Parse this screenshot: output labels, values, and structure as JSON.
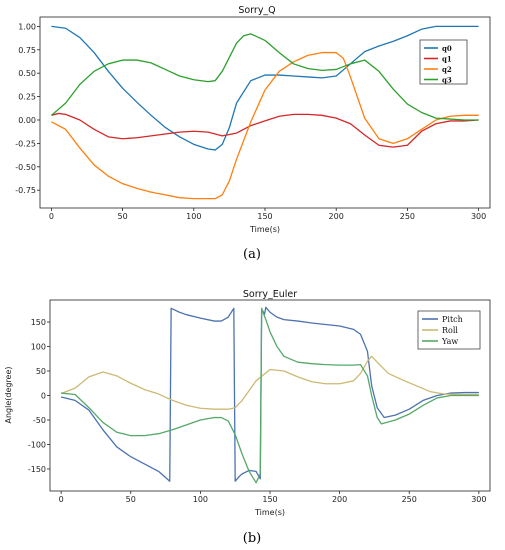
{
  "chart_data": [
    {
      "type": "line",
      "title": "Sorry_Q",
      "xlabel": "Time(s)",
      "ylabel": "",
      "xlim": [
        -8,
        308
      ],
      "ylim": [
        -0.94,
        1.1
      ],
      "xticks": [
        0,
        50,
        100,
        150,
        200,
        250,
        300
      ],
      "yticks": [
        -0.75,
        -0.5,
        -0.25,
        0.0,
        0.25,
        0.5,
        0.75,
        1.0
      ],
      "ytick_labels": [
        "-0.75",
        "-0.50",
        "-0.25",
        "0.00",
        "0.25",
        "0.50",
        "0.75",
        "1.00"
      ],
      "legend_position": "right",
      "grid": false,
      "series": [
        {
          "name": "q0",
          "color": "#1f77b4",
          "x": [
            0,
            10,
            20,
            30,
            40,
            50,
            60,
            70,
            80,
            90,
            100,
            110,
            115,
            120,
            125,
            130,
            140,
            150,
            160,
            170,
            180,
            190,
            200,
            210,
            220,
            230,
            240,
            250,
            260,
            270,
            280,
            290,
            300
          ],
          "y": [
            1.0,
            0.98,
            0.88,
            0.72,
            0.52,
            0.34,
            0.19,
            0.05,
            -0.08,
            -0.18,
            -0.26,
            -0.31,
            -0.32,
            -0.26,
            -0.08,
            0.18,
            0.42,
            0.48,
            0.48,
            0.47,
            0.46,
            0.45,
            0.47,
            0.6,
            0.73,
            0.79,
            0.84,
            0.9,
            0.97,
            1.0,
            1.0,
            1.0,
            1.0
          ]
        },
        {
          "name": "q1",
          "color": "#d62728",
          "x": [
            0,
            5,
            10,
            20,
            30,
            40,
            50,
            60,
            70,
            80,
            90,
            100,
            110,
            120,
            130,
            140,
            150,
            160,
            170,
            180,
            190,
            200,
            210,
            220,
            230,
            240,
            250,
            260,
            270,
            280,
            290,
            300
          ],
          "y": [
            0.05,
            0.07,
            0.06,
            0.0,
            -0.1,
            -0.18,
            -0.2,
            -0.19,
            -0.17,
            -0.15,
            -0.13,
            -0.12,
            -0.13,
            -0.17,
            -0.14,
            -0.06,
            -0.01,
            0.04,
            0.06,
            0.06,
            0.05,
            0.02,
            -0.04,
            -0.16,
            -0.27,
            -0.29,
            -0.27,
            -0.12,
            -0.04,
            -0.01,
            -0.01,
            0.0
          ]
        },
        {
          "name": "q2",
          "color": "#ff7f0e",
          "x": [
            0,
            10,
            20,
            30,
            40,
            50,
            60,
            70,
            80,
            90,
            100,
            110,
            115,
            120,
            125,
            130,
            140,
            150,
            160,
            170,
            180,
            190,
            200,
            205,
            210,
            220,
            230,
            240,
            250,
            260,
            270,
            280,
            290,
            300
          ],
          "y": [
            -0.02,
            -0.1,
            -0.3,
            -0.48,
            -0.6,
            -0.68,
            -0.73,
            -0.77,
            -0.8,
            -0.83,
            -0.84,
            -0.84,
            -0.84,
            -0.8,
            -0.65,
            -0.42,
            -0.02,
            0.32,
            0.52,
            0.62,
            0.69,
            0.72,
            0.72,
            0.66,
            0.46,
            0.02,
            -0.2,
            -0.25,
            -0.2,
            -0.1,
            0.0,
            0.04,
            0.05,
            0.05
          ]
        },
        {
          "name": "q3",
          "color": "#2ca02c",
          "x": [
            0,
            10,
            20,
            30,
            40,
            50,
            60,
            70,
            80,
            90,
            100,
            110,
            115,
            120,
            130,
            135,
            140,
            150,
            160,
            170,
            180,
            190,
            200,
            210,
            220,
            230,
            240,
            250,
            260,
            270,
            280,
            290,
            300
          ],
          "y": [
            0.05,
            0.18,
            0.38,
            0.52,
            0.6,
            0.64,
            0.64,
            0.61,
            0.54,
            0.47,
            0.43,
            0.41,
            0.42,
            0.52,
            0.82,
            0.9,
            0.92,
            0.85,
            0.72,
            0.6,
            0.55,
            0.53,
            0.54,
            0.6,
            0.64,
            0.52,
            0.33,
            0.17,
            0.08,
            0.02,
            0.01,
            0.0,
            0.0
          ]
        }
      ]
    },
    {
      "type": "line",
      "title": "Sorry_Euler",
      "xlabel": "Time(s)",
      "ylabel": "Angle(degree)",
      "xlim": [
        -8,
        308
      ],
      "ylim": [
        -195,
        195
      ],
      "xticks": [
        0,
        50,
        100,
        150,
        200,
        250,
        300
      ],
      "yticks": [
        -150,
        -100,
        -50,
        0,
        50,
        100,
        150
      ],
      "ytick_labels": [
        "-150",
        "-100",
        "-50",
        "0",
        "50",
        "100",
        "150"
      ],
      "legend_position": "top-right",
      "grid": false,
      "series": [
        {
          "name": "Pitch",
          "color": "#4c72b0",
          "x": [
            0,
            10,
            20,
            30,
            40,
            50,
            60,
            70,
            78,
            79,
            85,
            90,
            100,
            110,
            115,
            120,
            124,
            125,
            128,
            130,
            135,
            140,
            143,
            144,
            145,
            146,
            147,
            150,
            155,
            160,
            170,
            180,
            190,
            200,
            210,
            215,
            220,
            223,
            227,
            232,
            240,
            250,
            260,
            270,
            280,
            290,
            300
          ],
          "y": [
            -3,
            -10,
            -30,
            -70,
            -105,
            -125,
            -140,
            -155,
            -175,
            178,
            170,
            165,
            158,
            152,
            152,
            160,
            178,
            -175,
            -165,
            -160,
            -153,
            -155,
            -170,
            175,
            172,
            165,
            180,
            170,
            160,
            155,
            152,
            148,
            145,
            142,
            135,
            125,
            90,
            20,
            -25,
            -45,
            -40,
            -28,
            -10,
            0,
            5,
            6,
            6
          ]
        },
        {
          "name": "Roll",
          "color": "#ccb974",
          "x": [
            0,
            10,
            20,
            30,
            40,
            50,
            60,
            70,
            80,
            90,
            100,
            110,
            120,
            125,
            130,
            140,
            150,
            160,
            170,
            180,
            190,
            200,
            210,
            215,
            220,
            223,
            227,
            235,
            245,
            255,
            265,
            275,
            285,
            300
          ],
          "y": [
            4,
            15,
            38,
            48,
            40,
            25,
            12,
            3,
            -10,
            -20,
            -26,
            -28,
            -28,
            -25,
            -10,
            30,
            53,
            50,
            38,
            28,
            24,
            24,
            30,
            45,
            70,
            80,
            68,
            45,
            32,
            20,
            8,
            3,
            2,
            2
          ]
        },
        {
          "name": "Yaw",
          "color": "#55a868",
          "x": [
            0,
            10,
            20,
            30,
            40,
            50,
            60,
            70,
            80,
            90,
            100,
            110,
            115,
            120,
            125,
            130,
            135,
            140,
            143,
            144,
            145,
            147,
            150,
            155,
            160,
            170,
            180,
            190,
            200,
            210,
            215,
            220,
            223,
            227,
            230,
            240,
            250,
            260,
            270,
            280,
            290,
            300
          ],
          "y": [
            5,
            2,
            -25,
            -55,
            -75,
            -82,
            -82,
            -78,
            -70,
            -60,
            -50,
            -45,
            -45,
            -52,
            -80,
            -120,
            -155,
            -178,
            -160,
            178,
            170,
            155,
            130,
            100,
            80,
            68,
            65,
            63,
            62,
            62,
            63,
            40,
            0,
            -45,
            -58,
            -50,
            -38,
            -20,
            -5,
            0,
            0,
            0
          ]
        }
      ]
    }
  ],
  "captions": {
    "a": "(a)",
    "b": "(b)"
  }
}
